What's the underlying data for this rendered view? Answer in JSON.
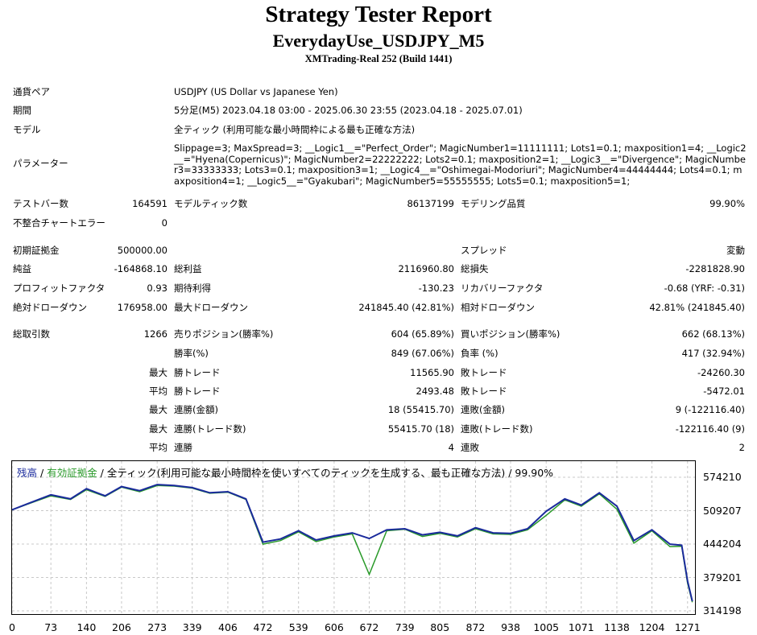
{
  "header": {
    "title": "Strategy Tester Report",
    "subtitle": "EverydayUse_USDJPY_M5",
    "server": "XMTrading-Real 252 (Build 1441)"
  },
  "info": {
    "symbol_label": "通貨ペア",
    "symbol_value": "USDJPY (US Dollar vs Japanese Yen)",
    "period_label": "期間",
    "period_value": "5分足(M5) 2023.04.18 03:00 - 2025.06.30 23:55 (2023.04.18 - 2025.07.01)",
    "model_label": "モデル",
    "model_value": "全ティック (利用可能な最小時間枠による最も正確な方法)",
    "params_label": "パラメーター",
    "params_value": "Slippage=3; MaxSpread=3; __Logic1__=\"Perfect_Order\"; MagicNumber1=11111111; Lots1=0.1; maxposition1=4; __Logic2__=\"Hyena(Copernicus)\"; MagicNumber2=22222222; Lots2=0.1; maxposition2=1; __Logic3__=\"Divergence\"; MagicNumber3=33333333; Lots3=0.1; maxposition3=1; __Logic4__=\"Oshimegai-Modoriuri\"; MagicNumber4=44444444; Lots4=0.1; maxposition4=1; __Logic5__=\"Gyakubari\"; MagicNumber5=55555555; Lots5=0.1; maxposition5=1;"
  },
  "stats": {
    "bars_label": "テストバー数",
    "bars_value": "164591",
    "ticks_label": "モデルティック数",
    "ticks_value": "86137199",
    "quality_label": "モデリング品質",
    "quality_value": "99.90%",
    "mismatch_label": "不整合チャートエラー",
    "mismatch_value": "0",
    "deposit_label": "初期証拠金",
    "deposit_value": "500000.00",
    "spread_label": "スプレッド",
    "spread_value": "変動",
    "net_label": "純益",
    "net_value": "-164868.10",
    "gross_profit_label": "総利益",
    "gross_profit_value": "2116960.80",
    "gross_loss_label": "総損失",
    "gross_loss_value": "-2281828.90",
    "pf_label": "プロフィットファクタ",
    "pf_value": "0.93",
    "payoff_label": "期待利得",
    "payoff_value": "-130.23",
    "recovery_label": "リカバリーファクタ",
    "recovery_value": "-0.68 (YRF: -0.31)",
    "abs_dd_label": "絶対ドローダウン",
    "abs_dd_value": "176958.00",
    "max_dd_label": "最大ドローダウン",
    "max_dd_value": "241845.40 (42.81%)",
    "rel_dd_label": "相対ドローダウン",
    "rel_dd_value": "42.81% (241845.40)",
    "trades_label": "総取引数",
    "trades_value": "1266",
    "short_label": "売りポジション(勝率%)",
    "short_value": "604 (65.89%)",
    "long_label": "買いポジション(勝率%)",
    "long_value": "662 (68.13%)",
    "win_rate_label": "勝率(%)",
    "win_rate_value": "849 (67.06%)",
    "loss_rate_label": "負率 (%)",
    "loss_rate_value": "417 (32.94%)",
    "max_prefix": "最大",
    "avg_prefix": "平均",
    "largest_win_label": "勝トレード",
    "largest_win_value": "11565.90",
    "largest_loss_label": "敗トレード",
    "largest_loss_value": "-24260.30",
    "avg_win_label": "勝トレード",
    "avg_win_value": "2493.48",
    "avg_loss_label": "敗トレード",
    "avg_loss_value": "-5472.01",
    "cons_win_amt_label": "連勝(金額)",
    "cons_win_amt_value": "18 (55415.70)",
    "cons_loss_amt_label": "連敗(金額)",
    "cons_loss_amt_value": "9 (-122116.40)",
    "cons_win_cnt_label": "連勝(トレード数)",
    "cons_win_cnt_value": "55415.70 (18)",
    "cons_loss_cnt_label": "連敗(トレード数)",
    "cons_loss_cnt_value": "-122116.40 (9)",
    "avg_cons_win_label": "連勝",
    "avg_cons_win_value": "4",
    "avg_cons_loss_label": "連敗",
    "avg_cons_loss_value": "2"
  },
  "chart_legend": {
    "balance": "残高",
    "sep1": " / ",
    "equity": "有効証拠金",
    "rest": " / 全ティック(利用可能な最小時間枠を使いすべてのティックを生成する、最も正確な方法) / 99.90%",
    "balance_color": "#1a2a9c",
    "equity_color": "#2a9a2a"
  },
  "chart_data": {
    "type": "line",
    "x": [
      0,
      35,
      73,
      110,
      140,
      175,
      206,
      240,
      273,
      305,
      339,
      372,
      406,
      440,
      472,
      505,
      539,
      572,
      606,
      640,
      672,
      705,
      739,
      772,
      805,
      838,
      872,
      905,
      938,
      970,
      1005,
      1040,
      1071,
      1105,
      1138,
      1170,
      1204,
      1238,
      1260,
      1271,
      1280
    ],
    "series": [
      {
        "name": "残高",
        "values": [
          511000,
          525000,
          540000,
          532000,
          552000,
          538000,
          556000,
          548000,
          560000,
          558000,
          554000,
          544000,
          546000,
          532000,
          448000,
          454000,
          470000,
          452000,
          460000,
          466000,
          455000,
          472000,
          474000,
          462000,
          467000,
          460000,
          476000,
          466000,
          465000,
          474000,
          508000,
          532000,
          520000,
          544000,
          518000,
          451000,
          472000,
          444000,
          442000,
          372000,
          333000
        ]
      },
      {
        "name": "有効証拠金",
        "values": [
          511000,
          524000,
          538000,
          531000,
          550000,
          537000,
          555000,
          546000,
          558000,
          557000,
          553000,
          543000,
          545000,
          531000,
          444000,
          451000,
          468000,
          449000,
          458000,
          464000,
          385000,
          470000,
          473000,
          459000,
          465000,
          458000,
          474000,
          464000,
          463000,
          472000,
          500000,
          530000,
          518000,
          542000,
          512000,
          446000,
          470000,
          439000,
          440000,
          368000,
          331000
        ]
      }
    ],
    "y_ticks": [
      "574210",
      "509207",
      "444204",
      "379201",
      "314198"
    ],
    "x_ticks": [
      "0",
      "73",
      "140",
      "206",
      "273",
      "339",
      "406",
      "472",
      "539",
      "606",
      "672",
      "739",
      "805",
      "872",
      "938",
      "1005",
      "1071",
      "1138",
      "1204",
      "1271"
    ],
    "ylim": [
      314198,
      574210
    ],
    "xlim": [
      0,
      1285
    ],
    "grid": true
  }
}
